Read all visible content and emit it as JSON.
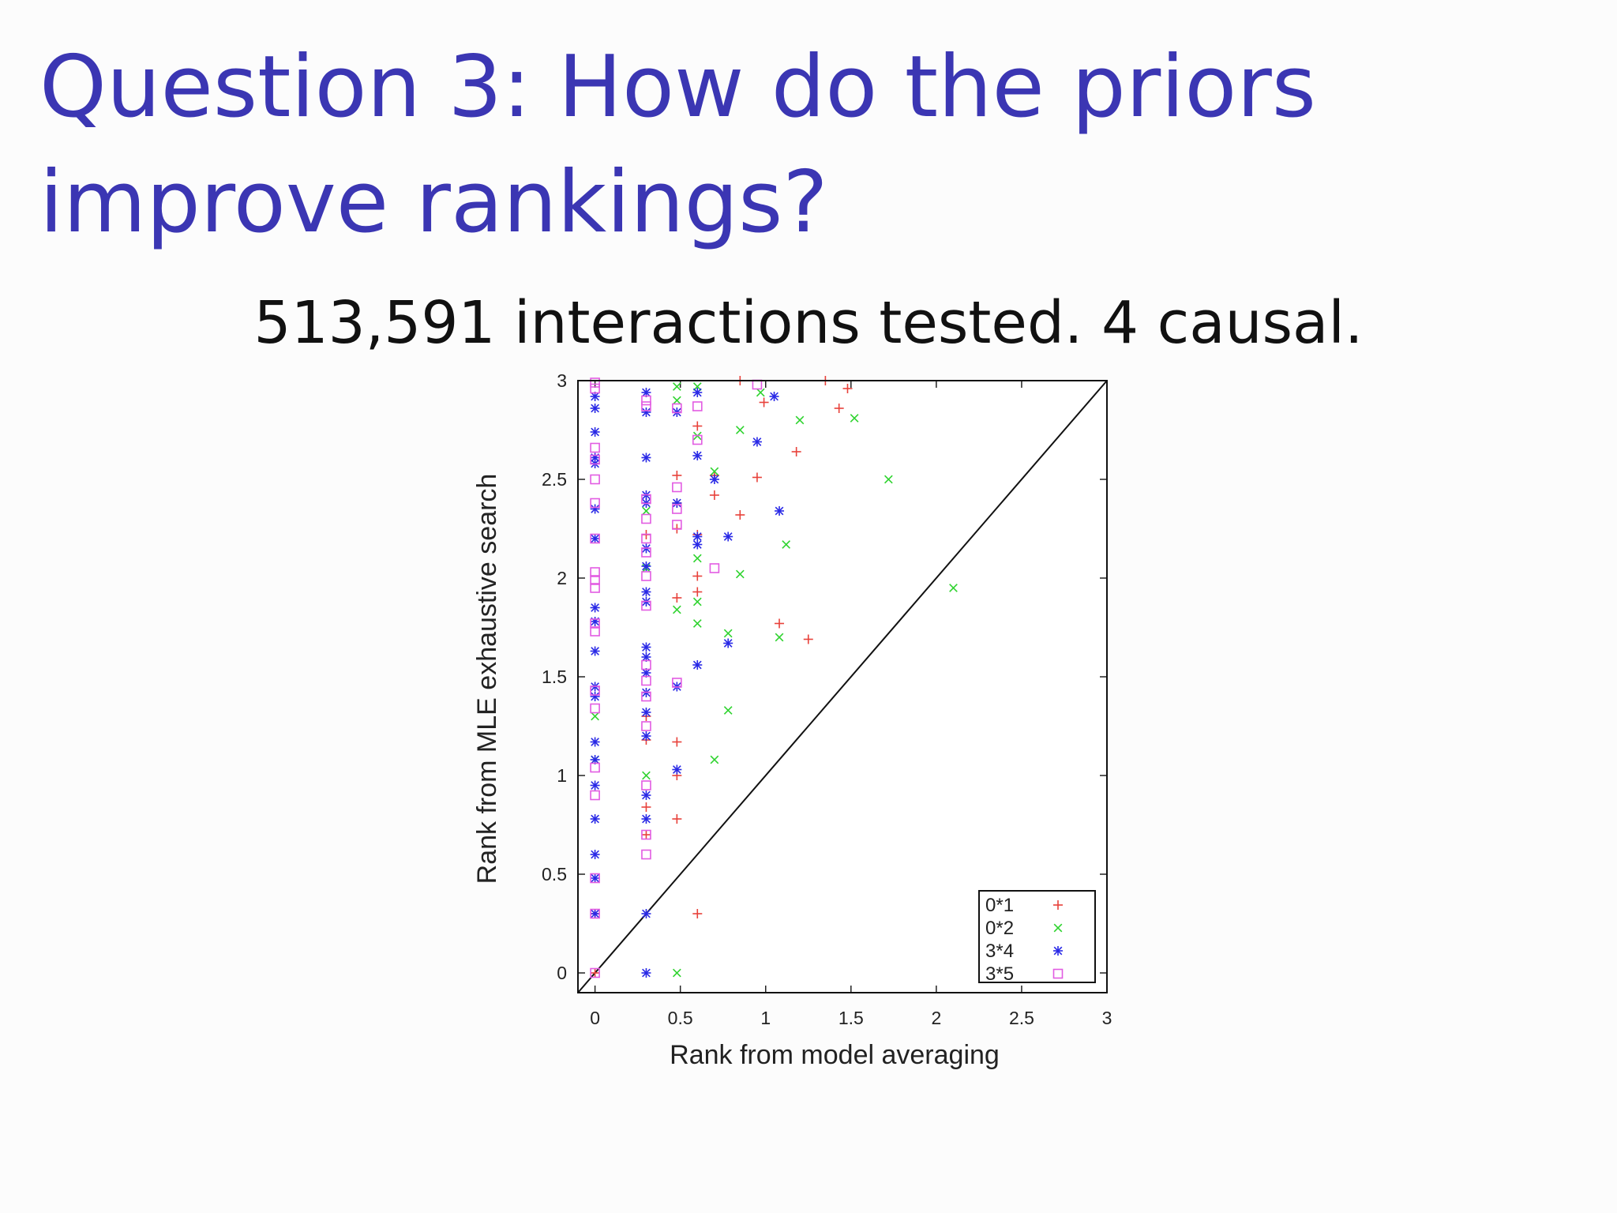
{
  "slide": {
    "title": "Question 3: How do the priors improve rankings?",
    "subtitle": "513,591 interactions tested. 4 causal."
  },
  "chart_data": {
    "type": "scatter",
    "title": "",
    "xlabel": "Rank from model averaging",
    "ylabel": "Rank from MLE exhaustive search",
    "xlim": [
      -0.1,
      3
    ],
    "ylim": [
      -0.1,
      3
    ],
    "xticks": [
      "0",
      "0.5",
      "1",
      "1.5",
      "2",
      "2.5",
      "3"
    ],
    "yticks": [
      "0",
      "0.5",
      "1",
      "1.5",
      "2",
      "2.5",
      "3"
    ],
    "diagonal": true,
    "legend_position": "bottom-right",
    "series": [
      {
        "name": "0*1",
        "marker": "plus",
        "color": "#e8413a",
        "points": [
          [
            0,
            0
          ],
          [
            0,
            0.3
          ],
          [
            0.3,
            0.7
          ],
          [
            0.3,
            0.84
          ],
          [
            0.3,
            1.18
          ],
          [
            0.3,
            1.3
          ],
          [
            0.3,
            2.22
          ],
          [
            0.48,
            0.78
          ],
          [
            0.48,
            1.0
          ],
          [
            0.48,
            1.17
          ],
          [
            0.48,
            1.9
          ],
          [
            0.48,
            2.25
          ],
          [
            0.48,
            2.38
          ],
          [
            0.48,
            2.52
          ],
          [
            0.6,
            0.3
          ],
          [
            0.6,
            1.93
          ],
          [
            0.6,
            2.01
          ],
          [
            0.6,
            2.22
          ],
          [
            0.6,
            2.77
          ],
          [
            0.7,
            2.42
          ],
          [
            0.7,
            2.52
          ],
          [
            0.85,
            2.32
          ],
          [
            0.85,
            3.0
          ],
          [
            0.95,
            2.51
          ],
          [
            0.99,
            2.89
          ],
          [
            1.08,
            1.77
          ],
          [
            1.18,
            2.64
          ],
          [
            1.25,
            1.69
          ],
          [
            1.35,
            3.0
          ],
          [
            1.43,
            2.86
          ],
          [
            1.48,
            2.96
          ]
        ]
      },
      {
        "name": "0*2",
        "marker": "x",
        "color": "#2fd32f",
        "points": [
          [
            0,
            1.3
          ],
          [
            0,
            1.08
          ],
          [
            0.3,
            1.0
          ],
          [
            0.3,
            2.05
          ],
          [
            0.3,
            2.34
          ],
          [
            0.48,
            0
          ],
          [
            0.48,
            1.84
          ],
          [
            0.48,
            2.9
          ],
          [
            0.48,
            2.97
          ],
          [
            0.6,
            1.77
          ],
          [
            0.6,
            1.88
          ],
          [
            0.6,
            2.1
          ],
          [
            0.6,
            2.72
          ],
          [
            0.6,
            2.97
          ],
          [
            0.7,
            1.08
          ],
          [
            0.7,
            2.54
          ],
          [
            0.78,
            1.33
          ],
          [
            0.78,
            1.72
          ],
          [
            0.85,
            2.02
          ],
          [
            0.85,
            2.75
          ],
          [
            0.97,
            2.94
          ],
          [
            1.08,
            1.7
          ],
          [
            1.12,
            2.17
          ],
          [
            1.2,
            2.8
          ],
          [
            1.52,
            2.81
          ],
          [
            1.72,
            2.5
          ],
          [
            2.1,
            1.95
          ]
        ]
      },
      {
        "name": "3*4",
        "marker": "star",
        "color": "#2929e6",
        "points": [
          [
            0,
            0.3
          ],
          [
            0,
            0.48
          ],
          [
            0,
            0.6
          ],
          [
            0,
            0.78
          ],
          [
            0,
            0.95
          ],
          [
            0,
            1.08
          ],
          [
            0,
            1.17
          ],
          [
            0,
            1.4
          ],
          [
            0,
            1.45
          ],
          [
            0,
            1.63
          ],
          [
            0,
            1.78
          ],
          [
            0,
            1.85
          ],
          [
            0,
            2.2
          ],
          [
            0,
            2.35
          ],
          [
            0,
            2.58
          ],
          [
            0,
            2.61
          ],
          [
            0,
            2.74
          ],
          [
            0,
            2.86
          ],
          [
            0,
            2.92
          ],
          [
            0.3,
            0
          ],
          [
            0.3,
            0.3
          ],
          [
            0.3,
            0.78
          ],
          [
            0.3,
            0.9
          ],
          [
            0.3,
            1.2
          ],
          [
            0.3,
            1.32
          ],
          [
            0.3,
            1.42
          ],
          [
            0.3,
            1.52
          ],
          [
            0.3,
            1.6
          ],
          [
            0.3,
            1.65
          ],
          [
            0.3,
            1.88
          ],
          [
            0.3,
            1.93
          ],
          [
            0.3,
            2.06
          ],
          [
            0.3,
            2.15
          ],
          [
            0.3,
            2.38
          ],
          [
            0.3,
            2.42
          ],
          [
            0.3,
            2.61
          ],
          [
            0.3,
            2.84
          ],
          [
            0.3,
            2.94
          ],
          [
            0.48,
            1.03
          ],
          [
            0.48,
            1.45
          ],
          [
            0.48,
            2.38
          ],
          [
            0.48,
            2.84
          ],
          [
            0.6,
            1.56
          ],
          [
            0.6,
            2.17
          ],
          [
            0.6,
            2.21
          ],
          [
            0.6,
            2.62
          ],
          [
            0.6,
            2.94
          ],
          [
            0.7,
            2.5
          ],
          [
            0.78,
            1.67
          ],
          [
            0.78,
            2.21
          ],
          [
            0.95,
            2.69
          ],
          [
            1.05,
            2.92
          ],
          [
            1.08,
            2.34
          ]
        ]
      },
      {
        "name": "3*5",
        "marker": "square",
        "color": "#e25ce2",
        "points": [
          [
            0,
            0
          ],
          [
            0,
            0.3
          ],
          [
            0,
            0.48
          ],
          [
            0,
            0.9
          ],
          [
            0,
            1.04
          ],
          [
            0,
            1.34
          ],
          [
            0,
            1.43
          ],
          [
            0,
            1.73
          ],
          [
            0,
            1.77
          ],
          [
            0,
            1.95
          ],
          [
            0,
            1.99
          ],
          [
            0,
            2.03
          ],
          [
            0,
            2.2
          ],
          [
            0,
            2.38
          ],
          [
            0,
            2.5
          ],
          [
            0,
            2.6
          ],
          [
            0,
            2.66
          ],
          [
            0,
            2.96
          ],
          [
            0,
            2.99
          ],
          [
            0.3,
            0.6
          ],
          [
            0.3,
            0.7
          ],
          [
            0.3,
            0.95
          ],
          [
            0.3,
            1.25
          ],
          [
            0.3,
            1.4
          ],
          [
            0.3,
            1.48
          ],
          [
            0.3,
            1.56
          ],
          [
            0.3,
            1.86
          ],
          [
            0.3,
            2.01
          ],
          [
            0.3,
            2.13
          ],
          [
            0.3,
            2.2
          ],
          [
            0.3,
            2.3
          ],
          [
            0.3,
            2.4
          ],
          [
            0.3,
            2.87
          ],
          [
            0.3,
            2.9
          ],
          [
            0.48,
            1.47
          ],
          [
            0.48,
            2.27
          ],
          [
            0.48,
            2.35
          ],
          [
            0.48,
            2.46
          ],
          [
            0.48,
            2.86
          ],
          [
            0.6,
            2.7
          ],
          [
            0.6,
            2.87
          ],
          [
            0.7,
            2.05
          ],
          [
            0.95,
            2.98
          ]
        ]
      }
    ]
  }
}
